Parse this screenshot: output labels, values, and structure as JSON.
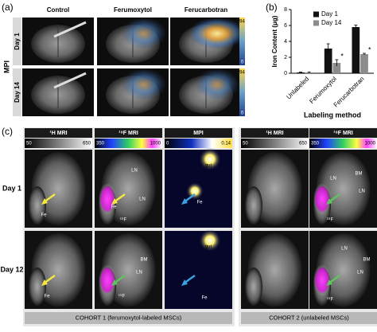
{
  "panel_a": {
    "label": "(a)",
    "side_label": "MPI",
    "columns": [
      "Control",
      "Ferumoxytol",
      "Ferucarbotran"
    ],
    "rows": [
      "Day 1",
      "Day 14"
    ],
    "colorbar_labels": [
      [
        "94",
        "0"
      ],
      [
        "94",
        "0"
      ]
    ]
  },
  "chart_data": {
    "type": "bar",
    "label": "(b)",
    "y_label": "Iron Content (μg)",
    "x_label": "Labeling method",
    "categories": [
      "Unlabeled",
      "Ferumoxytol",
      "Ferucarbotran"
    ],
    "series": [
      {
        "name": "Day 1",
        "color": "#111111",
        "values": [
          0.1,
          3.1,
          5.8
        ],
        "errors": [
          0.05,
          0.6,
          0.25
        ]
      },
      {
        "name": "Day 14",
        "color": "#8c8c8c",
        "values": [
          0.1,
          1.3,
          2.4
        ],
        "errors": [
          0.05,
          0.4,
          0.1
        ]
      }
    ],
    "annotations": [
      "*",
      "*"
    ],
    "ylim": [
      0,
      8
    ],
    "yticks": [
      0,
      2,
      4,
      6,
      8
    ]
  },
  "panel_c": {
    "label": "(c)",
    "headers": [
      "¹H MRI",
      "¹⁹F MRI",
      "MPI",
      "¹H MRI",
      "¹⁹F MRI"
    ],
    "colorbar_labels": [
      [
        "50",
        "650"
      ],
      [
        "350",
        "1000"
      ],
      [
        "0",
        "0.14"
      ],
      [
        "50",
        "650"
      ],
      [
        "350",
        "1000"
      ]
    ],
    "rows": [
      "Day 1",
      "Day 12"
    ],
    "cohorts": [
      "COHORT 1 (ferumoxytol-labeled MSCs)",
      "COHORT 2 (unlabeled MSCs)"
    ],
    "annotations": [
      "Fe",
      "Fe",
      "¹⁹F",
      "LN",
      "LN",
      "gut",
      "Fe",
      "Fe",
      "BM",
      "LN",
      "¹⁹F",
      "gut",
      "Fe",
      "BM",
      "LN",
      "LN",
      "¹⁹F",
      "LN",
      "BM",
      "LN",
      "¹⁹F"
    ]
  }
}
